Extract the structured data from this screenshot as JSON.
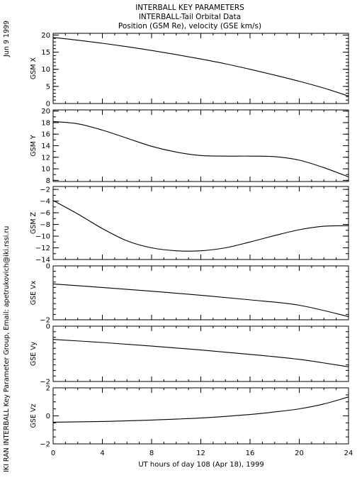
{
  "header": {
    "title_lines": [
      "INTERBALL KEY PARAMETERS",
      "INTERBALL-Tail Orbital Data",
      "Position (GSM Re), velocity (GSE km/s)"
    ],
    "date_label": "Jun  9 1999",
    "credit": "IKI RAN INTERBALL Key Parameter Group, Email: apetrukovich@iki.rssi.ru"
  },
  "chart_data": {
    "type": "line",
    "xlabel": "UT hours of day 108 (Apr 18), 1999",
    "xlim": [
      0,
      24
    ],
    "x_ticks": [
      0,
      4,
      8,
      12,
      16,
      20,
      24
    ],
    "x_minor_step": 1,
    "panels": [
      {
        "ylabel": "GSM X",
        "ylim": [
          0,
          20.5
        ],
        "y_ticks": [
          0,
          5,
          10,
          15,
          20
        ],
        "y_minor_step": 1,
        "series": [
          {
            "x": [
              0,
              2,
              4,
              6,
              8,
              10,
              12,
              14,
              16,
              18,
              20,
              22,
              24
            ],
            "y": [
              19.3,
              18.5,
              17.6,
              16.6,
              15.5,
              14.3,
              13.0,
              11.6,
              10.0,
              8.3,
              6.5,
              4.5,
              2.2
            ]
          }
        ]
      },
      {
        "ylabel": "GSM Y",
        "ylim": [
          7.8,
          20.2
        ],
        "y_ticks": [
          8,
          10,
          12,
          14,
          16,
          18,
          20
        ],
        "y_minor_step": 1,
        "series": [
          {
            "x": [
              0,
              2,
              4,
              6,
              8,
              10,
              12,
              14,
              16,
              18,
              20,
              22,
              24
            ],
            "y": [
              18.2,
              17.8,
              16.7,
              15.3,
              13.9,
              12.9,
              12.3,
              12.2,
              12.2,
              12.1,
              11.5,
              10.2,
              8.6
            ]
          }
        ]
      },
      {
        "ylabel": "GSM Z",
        "ylim": [
          -14,
          -1.5
        ],
        "y_ticks": [
          -14,
          -12,
          -10,
          -8,
          -6,
          -4,
          -2
        ],
        "y_minor_step": 1,
        "series": [
          {
            "x": [
              0,
              2,
              4,
              6,
              8,
              10,
              12,
              14,
              16,
              18,
              20,
              22,
              24
            ],
            "y": [
              -3.9,
              -6.2,
              -8.7,
              -10.8,
              -12.0,
              -12.5,
              -12.5,
              -12.0,
              -11.0,
              -9.9,
              -8.9,
              -8.3,
              -8.2
            ]
          }
        ]
      },
      {
        "ylabel": "GSE Vx",
        "ylim": [
          -2,
          0
        ],
        "y_ticks": [
          -2,
          0
        ],
        "y_minor_step": 0.2,
        "series": [
          {
            "x": [
              0,
              4,
              8,
              12,
              16,
              20,
              24
            ],
            "y": [
              -0.67,
              -0.8,
              -0.94,
              -1.09,
              -1.26,
              -1.46,
              -1.88
            ]
          }
        ]
      },
      {
        "ylabel": "GSE Vy",
        "ylim": [
          -2,
          0
        ],
        "y_ticks": [
          -2,
          0
        ],
        "y_minor_step": 0.2,
        "series": [
          {
            "x": [
              0,
              4,
              8,
              12,
              16,
              20,
              24
            ],
            "y": [
              -0.48,
              -0.59,
              -0.72,
              -0.86,
              -1.02,
              -1.2,
              -1.47
            ]
          }
        ]
      },
      {
        "ylabel": "GSE Vz",
        "ylim": [
          -2,
          2
        ],
        "y_ticks": [
          -2,
          0,
          2
        ],
        "y_minor_step": 0.5,
        "series": [
          {
            "x": [
              0,
              4,
              8,
              12,
              16,
              18,
              20,
              22,
              24
            ],
            "y": [
              -0.45,
              -0.4,
              -0.3,
              -0.15,
              0.1,
              0.28,
              0.5,
              0.85,
              1.35
            ]
          }
        ]
      }
    ]
  }
}
